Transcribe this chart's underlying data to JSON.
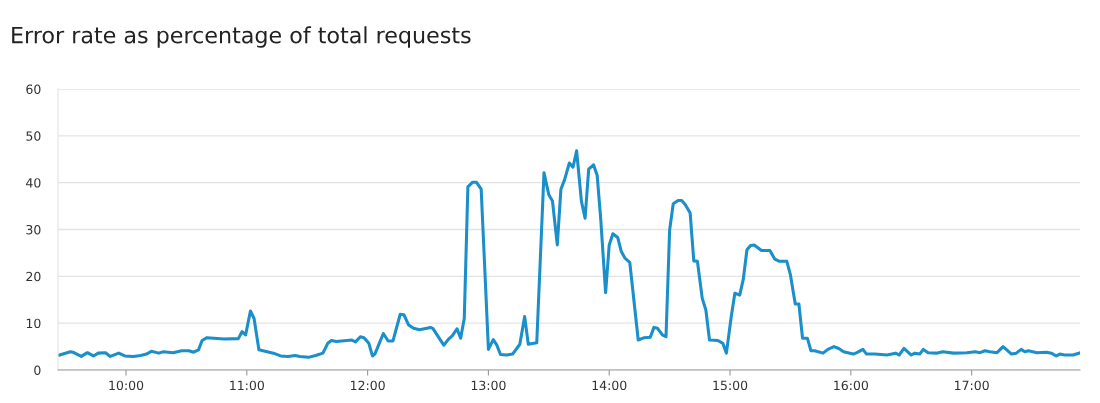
{
  "chart_data": {
    "type": "line",
    "title": "Error rate as percentage of total requests",
    "x": [
      9.45,
      9.54,
      9.56,
      9.63,
      9.68,
      9.73,
      9.77,
      9.83,
      9.87,
      9.94,
      9.99,
      10.06,
      10.12,
      10.17,
      10.21,
      10.27,
      10.31,
      10.39,
      10.46,
      10.52,
      10.56,
      10.6,
      10.63,
      10.67,
      10.81,
      10.93,
      10.96,
      10.99,
      11.03,
      11.06,
      11.1,
      11.22,
      11.28,
      11.34,
      11.4,
      11.44,
      11.51,
      11.57,
      11.63,
      11.67,
      11.7,
      11.74,
      11.87,
      11.9,
      11.94,
      11.97,
      12.01,
      12.04,
      12.06,
      12.13,
      12.17,
      12.21,
      12.27,
      12.3,
      12.34,
      12.38,
      12.43,
      12.52,
      12.54,
      12.63,
      12.67,
      12.7,
      12.74,
      12.77,
      12.8,
      12.83,
      12.87,
      12.9,
      12.94,
      13.0,
      13.04,
      13.07,
      13.1,
      13.15,
      13.2,
      13.26,
      13.3,
      13.33,
      13.4,
      13.46,
      13.5,
      13.53,
      13.57,
      13.6,
      13.63,
      13.67,
      13.7,
      13.73,
      13.77,
      13.8,
      13.83,
      13.87,
      13.9,
      13.93,
      13.97,
      14.0,
      14.03,
      14.07,
      14.1,
      14.13,
      14.17,
      14.24,
      14.29,
      14.34,
      14.37,
      14.4,
      14.44,
      14.47,
      14.5,
      14.53,
      14.57,
      14.6,
      14.63,
      14.67,
      14.7,
      14.73,
      14.77,
      14.8,
      14.83,
      14.9,
      14.94,
      14.97,
      15.01,
      15.04,
      15.08,
      15.11,
      15.14,
      15.17,
      15.2,
      15.26,
      15.33,
      15.37,
      15.41,
      15.47,
      15.5,
      15.54,
      15.57,
      15.6,
      15.64,
      15.67,
      15.7,
      15.77,
      15.81,
      15.86,
      15.9,
      15.94,
      16.02,
      16.05,
      16.1,
      16.13,
      16.2,
      16.3,
      16.37,
      16.4,
      16.44,
      16.5,
      16.53,
      16.57,
      16.6,
      16.64,
      16.71,
      16.76,
      16.85,
      16.96,
      17.03,
      17.07,
      17.11,
      17.15,
      17.21,
      17.26,
      17.33,
      17.37,
      17.41,
      17.44,
      17.47,
      17.54,
      17.62,
      17.66,
      17.7,
      17.73,
      17.77,
      17.84,
      17.89
    ],
    "series": [
      {
        "color": "#1a8fc9",
        "values": [
          3.2,
          3.9,
          3.8,
          2.9,
          3.7,
          3.0,
          3.6,
          3.7,
          2.9,
          3.6,
          3.0,
          2.9,
          3.1,
          3.4,
          4.0,
          3.6,
          3.9,
          3.7,
          4.1,
          4.1,
          3.8,
          4.3,
          6.3,
          6.9,
          6.6,
          6.7,
          8.2,
          7.5,
          12.6,
          11.0,
          4.3,
          3.6,
          3.0,
          2.9,
          3.1,
          2.9,
          2.7,
          3.1,
          3.6,
          5.7,
          6.3,
          6.1,
          6.4,
          6.0,
          7.1,
          6.9,
          5.7,
          3.0,
          3.4,
          7.8,
          6.2,
          6.2,
          11.9,
          11.8,
          9.6,
          8.9,
          8.6,
          9.1,
          8.9,
          5.3,
          6.6,
          7.3,
          8.8,
          6.8,
          11.0,
          39.1,
          40.1,
          40.1,
          38.6,
          4.4,
          6.5,
          5.3,
          3.3,
          3.2,
          3.4,
          5.5,
          11.4,
          5.5,
          5.8,
          42.1,
          37.4,
          36.1,
          26.7,
          38.6,
          40.6,
          44.2,
          43.3,
          46.8,
          36.0,
          32.4,
          42.9,
          43.8,
          41.6,
          32.1,
          16.5,
          26.7,
          29.1,
          28.3,
          25.3,
          23.9,
          23.0,
          6.4,
          6.9,
          7.0,
          9.1,
          8.9,
          7.5,
          7.1,
          29.9,
          35.5,
          36.2,
          36.2,
          35.3,
          33.5,
          23.3,
          23.2,
          15.3,
          12.8,
          6.4,
          6.3,
          5.7,
          3.6,
          11.4,
          16.4,
          16.0,
          19.4,
          25.7,
          26.6,
          26.7,
          25.5,
          25.5,
          23.7,
          23.2,
          23.2,
          20.3,
          14.1,
          14.1,
          6.8,
          6.8,
          4.1,
          4.1,
          3.6,
          4.4,
          5.0,
          4.6,
          3.9,
          3.4,
          3.7,
          4.4,
          3.4,
          3.4,
          3.2,
          3.6,
          3.2,
          4.6,
          3.2,
          3.6,
          3.4,
          4.4,
          3.7,
          3.6,
          3.9,
          3.6,
          3.7,
          3.9,
          3.7,
          4.1,
          3.9,
          3.7,
          5.0,
          3.4,
          3.6,
          4.4,
          3.9,
          4.1,
          3.7,
          3.8,
          3.6,
          3.0,
          3.4,
          3.2,
          3.2,
          3.6
        ]
      }
    ],
    "xlim": [
      9.437,
      17.897
    ],
    "xticks": [
      {
        "value": 10,
        "label": "10:00"
      },
      {
        "value": 11,
        "label": "11:00"
      },
      {
        "value": 12,
        "label": "12:00"
      },
      {
        "value": 13,
        "label": "13:00"
      },
      {
        "value": 14,
        "label": "14:00"
      },
      {
        "value": 15,
        "label": "15:00"
      },
      {
        "value": 16,
        "label": "16:00"
      },
      {
        "value": 17,
        "label": "17:00"
      }
    ],
    "ylim": [
      0,
      60
    ],
    "yticks": [
      0,
      10,
      20,
      30,
      40,
      50,
      60
    ],
    "grid": "y",
    "marker": "none",
    "line_style": "solid",
    "legend": false
  }
}
